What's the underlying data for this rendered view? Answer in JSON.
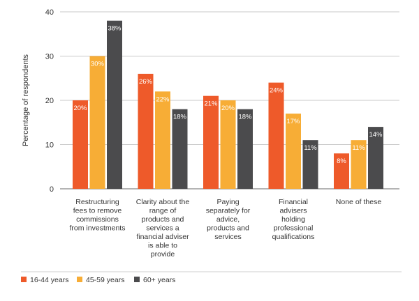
{
  "chart_data": {
    "type": "bar",
    "ylabel": "Percentage of respondents",
    "ylim": [
      0,
      40
    ],
    "yticks": [
      0,
      10,
      20,
      30,
      40
    ],
    "grid": true,
    "legend_position": "bottom-left",
    "categories": [
      [
        "Restructuring",
        "fees to remove",
        "commissions",
        "from investments"
      ],
      [
        "Clarity about the",
        "range of",
        "products and",
        "services a",
        "financial adviser",
        "is able to",
        "provide"
      ],
      [
        "Paying",
        "separately for",
        "advice,",
        "products and",
        "services"
      ],
      [
        "Financial",
        "advisers",
        "holding",
        "professional",
        "qualifications"
      ],
      [
        "None of these"
      ]
    ],
    "series": [
      {
        "name": "16-44 years",
        "color": "#ee5a2a",
        "values": [
          20,
          26,
          21,
          24,
          8
        ],
        "labels": [
          "20%",
          "26%",
          "21%",
          "24%",
          "8%"
        ]
      },
      {
        "name": "45-59 years",
        "color": "#f7ad36",
        "values": [
          30,
          22,
          20,
          17,
          11
        ],
        "labels": [
          "30%",
          "22%",
          "20%",
          "17%",
          "11%"
        ]
      },
      {
        "name": "60+ years",
        "color": "#4b4b4d",
        "values": [
          38,
          18,
          18,
          11,
          14
        ],
        "labels": [
          "38%",
          "18%",
          "18%",
          "11%",
          "14%"
        ]
      }
    ]
  }
}
